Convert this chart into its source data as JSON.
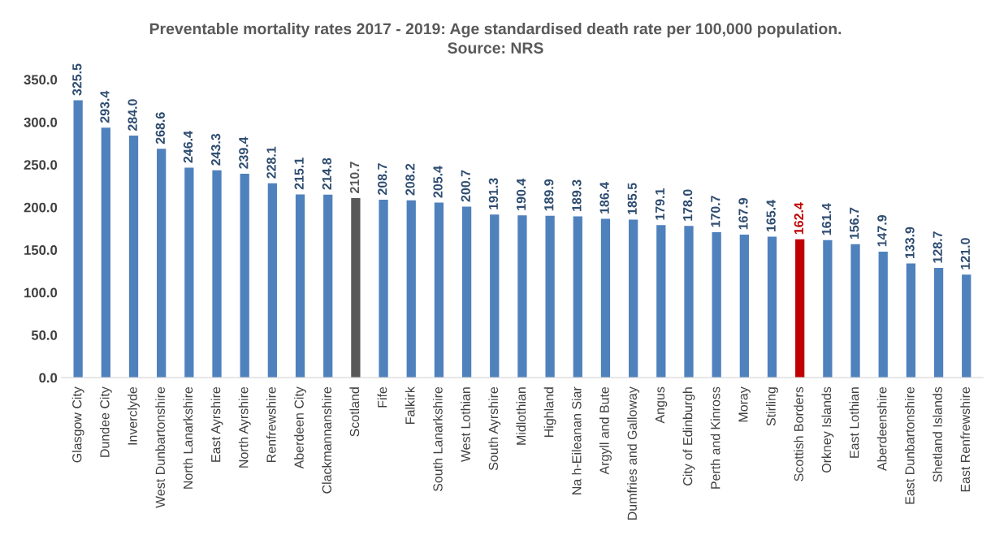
{
  "chart_data": {
    "type": "bar",
    "title": "Preventable mortality rates 2017 - 2019: Age standardised death rate per 100,000 population.",
    "annotations": [
      "Source: NRS"
    ],
    "categories": [
      "Glasgow City",
      "Dundee City",
      "Inverclyde",
      "West Dunbartonshire",
      "North Lanarkshire",
      "East Ayrshire",
      "North Ayrshire",
      "Renfrewshire",
      "Aberdeen City",
      "Clackmannanshire",
      "Scotland",
      "Fife",
      "Falkirk",
      "South Lanarkshire",
      "West Lothian",
      "South Ayrshire",
      "Midlothian",
      "Highland",
      "Na h-Eileanan Siar",
      "Argyll and Bute",
      "Dumfries and Galloway",
      "Angus",
      "City of Edinburgh",
      "Perth and Kinross",
      "Moray",
      "Stirling",
      "Scottish Borders",
      "Orkney Islands",
      "East Lothian",
      "Aberdeenshire",
      "East Dunbartonshire",
      "Shetland Islands",
      "East Renfrewshire"
    ],
    "values": [
      325.5,
      293.4,
      284.0,
      268.6,
      246.4,
      243.3,
      239.4,
      228.1,
      215.1,
      214.8,
      210.7,
      208.7,
      208.2,
      205.4,
      200.7,
      191.3,
      190.4,
      189.9,
      189.3,
      186.4,
      185.5,
      179.1,
      178.0,
      170.7,
      167.9,
      165.4,
      162.4,
      161.4,
      156.7,
      147.9,
      133.9,
      128.7,
      121.0
    ],
    "value_labels": [
      "325.5",
      "293.4",
      "284.0",
      "268.6",
      "246.4",
      "243.3",
      "239.4",
      "228.1",
      "215.1",
      "214.8",
      "210.7",
      "208.7",
      "208.2",
      "205.4",
      "200.7",
      "191.3",
      "190.4",
      "189.9",
      "189.3",
      "186.4",
      "185.5",
      "179.1",
      "178.0",
      "170.7",
      "167.9",
      "165.4",
      "162.4",
      "161.4",
      "156.7",
      "147.9",
      "133.9",
      "128.7",
      "121.0"
    ],
    "colors": [
      "#4f81bd",
      "#4f81bd",
      "#4f81bd",
      "#4f81bd",
      "#4f81bd",
      "#4f81bd",
      "#4f81bd",
      "#4f81bd",
      "#4f81bd",
      "#4f81bd",
      "#595959",
      "#4f81bd",
      "#4f81bd",
      "#4f81bd",
      "#4f81bd",
      "#4f81bd",
      "#4f81bd",
      "#4f81bd",
      "#4f81bd",
      "#4f81bd",
      "#4f81bd",
      "#4f81bd",
      "#4f81bd",
      "#4f81bd",
      "#4f81bd",
      "#4f81bd",
      "#c00000",
      "#4f81bd",
      "#4f81bd",
      "#4f81bd",
      "#4f81bd",
      "#4f81bd",
      "#4f81bd"
    ],
    "ylim": [
      0,
      350
    ],
    "yticks": [
      {
        "value": 0,
        "label": "0.0"
      },
      {
        "value": 50,
        "label": "50.0"
      },
      {
        "value": 100,
        "label": "100.0"
      },
      {
        "value": 150,
        "label": "150.0"
      },
      {
        "value": 200,
        "label": "200.0"
      },
      {
        "value": 250,
        "label": "250.0"
      },
      {
        "value": 300,
        "label": "300.0"
      },
      {
        "value": 350,
        "label": "350.0"
      }
    ],
    "grid": false
  }
}
